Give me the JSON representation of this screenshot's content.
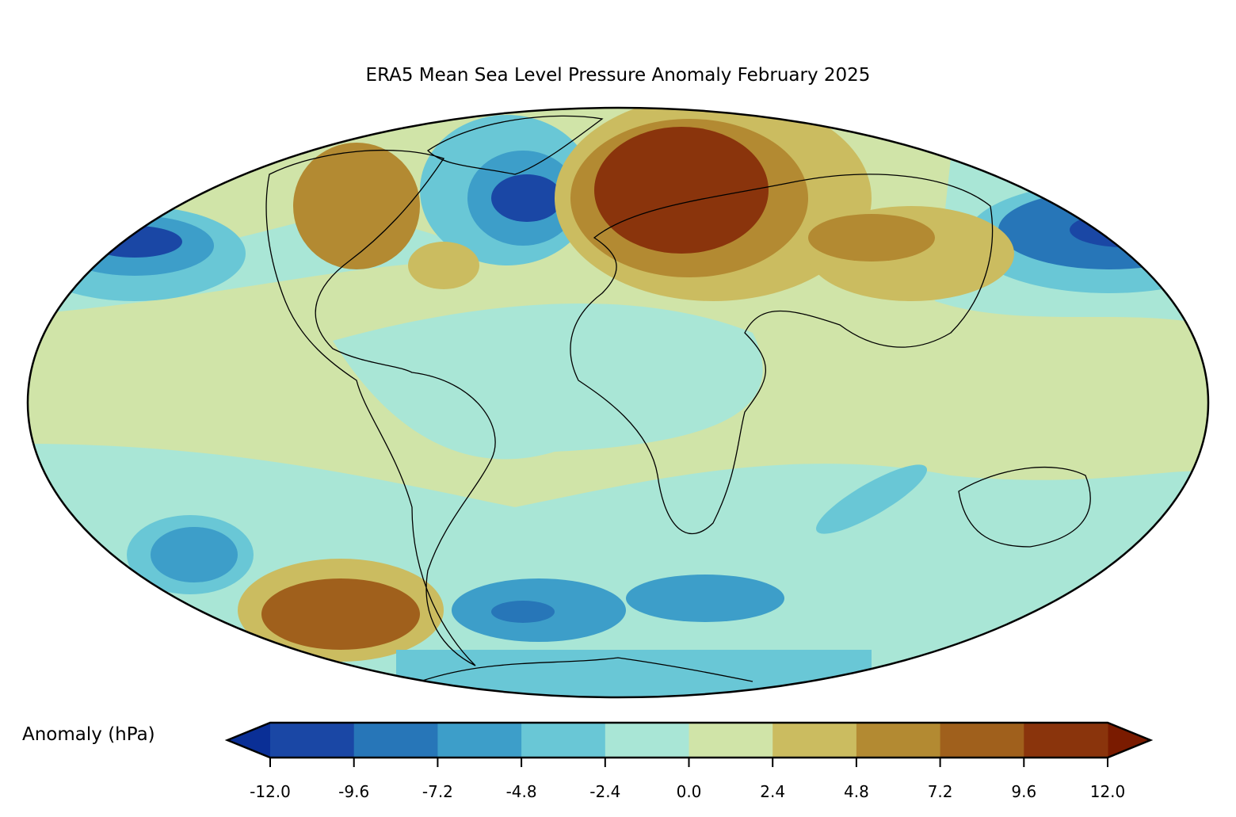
{
  "title": "ERA5 Mean Sea Level Pressure Anomaly February 2025",
  "colorbar": {
    "label": "Anomaly (hPa)",
    "ticks": [
      "-12.0",
      "-9.6",
      "-7.2",
      "-4.8",
      "-2.4",
      "0.0",
      "2.4",
      "4.8",
      "7.2",
      "9.6",
      "12.0"
    ],
    "levels": [
      -12.0,
      -9.6,
      -7.2,
      -4.8,
      -2.4,
      0.0,
      2.4,
      4.8,
      7.2,
      9.6,
      12.0
    ],
    "colors": [
      "#1a47a5",
      "#2776b8",
      "#3d9ec9",
      "#69c7d6",
      "#a9e6d6",
      "#d0e4a8",
      "#cbbc60",
      "#b38a32",
      "#a0601c",
      "#8a340c"
    ],
    "under_color": "#0a2f96",
    "over_color": "#7a1b00",
    "extend": "both"
  },
  "map": {
    "projection": "mollweide"
  }
}
